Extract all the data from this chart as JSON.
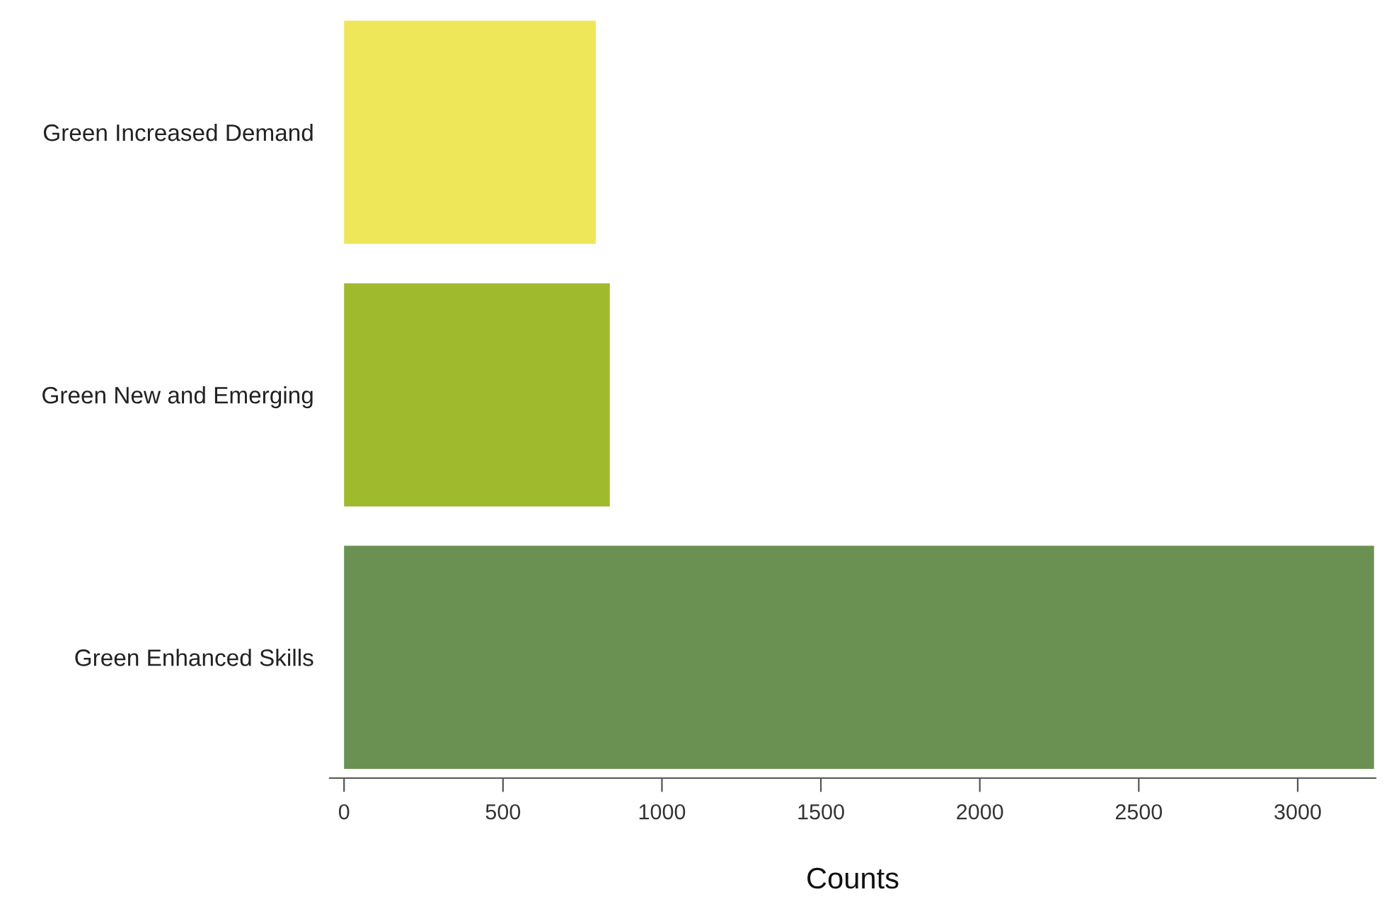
{
  "chart_data": {
    "type": "bar",
    "orientation": "horizontal",
    "xlabel": "Counts",
    "categories": [
      "Green Increased Demand",
      "Green New and Emerging",
      "Green Enhanced Skills"
    ],
    "values": [
      792,
      836,
      3240
    ],
    "colors": [
      "#eee75a",
      "#a0ba2e",
      "#6b9152"
    ],
    "xlim": [
      -45,
      3245
    ],
    "xticks": [
      0,
      500,
      1000,
      1500,
      2000,
      2500,
      3000
    ],
    "grid": false,
    "legend": false
  }
}
